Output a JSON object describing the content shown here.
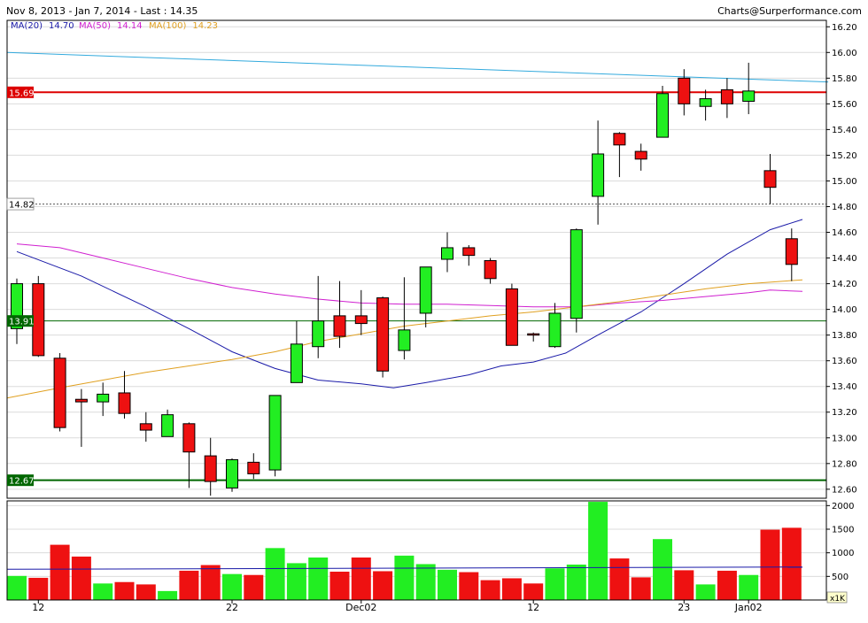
{
  "header": {
    "title": "Nov 8, 2013 - Jan 7, 2014 - Last : 14.35",
    "credit": "Charts@Surperformance.com"
  },
  "legend": [
    {
      "label": "MA(20)",
      "value": "14.70",
      "color": "#1a1aa8"
    },
    {
      "label": "MA(50)",
      "value": "14.14",
      "color": "#d020d0"
    },
    {
      "label": "MA(100)",
      "value": "14.23",
      "color": "#e0a020"
    }
  ],
  "colors": {
    "up": "#22ee22",
    "down": "#ee1111",
    "resistance": "#dd0000",
    "support": "#006600",
    "trend": "#33aadd",
    "volume_ma": "#1a1aa8"
  },
  "chart_data": {
    "type": "candlestick",
    "price_axis": {
      "range": [
        12.53,
        16.25
      ],
      "ticks": [
        "12.60",
        "12.80",
        "13.00",
        "13.20",
        "13.40",
        "13.60",
        "13.80",
        "14.00",
        "14.20",
        "14.40",
        "14.60",
        "14.80",
        "15.00",
        "15.20",
        "15.40",
        "15.60",
        "15.80",
        "16.00",
        "16.20"
      ]
    },
    "volume_axis": {
      "range": [
        0,
        2100
      ],
      "ticks": [
        "500",
        "1000",
        "1500",
        "2000"
      ],
      "unit_label": "x1K"
    },
    "x_labels": [
      {
        "index": 1,
        "label": "12"
      },
      {
        "index": 10,
        "label": "22"
      },
      {
        "index": 16,
        "label": "Dec02"
      },
      {
        "index": 24,
        "label": "12"
      },
      {
        "index": 31,
        "label": "23"
      },
      {
        "index": 34,
        "label": "Jan02"
      }
    ],
    "candles": [
      {
        "o": 13.85,
        "h": 14.24,
        "l": 13.73,
        "c": 14.2,
        "v": 510
      },
      {
        "o": 14.2,
        "h": 14.26,
        "l": 13.63,
        "c": 13.64,
        "v": 470
      },
      {
        "o": 13.62,
        "h": 13.66,
        "l": 13.05,
        "c": 13.08,
        "v": 1170
      },
      {
        "o": 13.3,
        "h": 13.38,
        "l": 12.93,
        "c": 13.28,
        "v": 920
      },
      {
        "o": 13.28,
        "h": 13.43,
        "l": 13.17,
        "c": 13.34,
        "v": 350
      },
      {
        "o": 13.35,
        "h": 13.52,
        "l": 13.15,
        "c": 13.19,
        "v": 380
      },
      {
        "o": 13.11,
        "h": 13.2,
        "l": 12.97,
        "c": 13.06,
        "v": 330
      },
      {
        "o": 13.01,
        "h": 13.22,
        "l": 13.01,
        "c": 13.18,
        "v": 190
      },
      {
        "o": 13.11,
        "h": 13.12,
        "l": 12.61,
        "c": 12.89,
        "v": 620
      },
      {
        "o": 12.86,
        "h": 13.0,
        "l": 12.55,
        "c": 12.66,
        "v": 740
      },
      {
        "o": 12.61,
        "h": 12.84,
        "l": 12.58,
        "c": 12.83,
        "v": 550
      },
      {
        "o": 12.81,
        "h": 12.88,
        "l": 12.68,
        "c": 12.72,
        "v": 530
      },
      {
        "o": 12.75,
        "h": 13.33,
        "l": 12.7,
        "c": 13.33,
        "v": 1100
      },
      {
        "o": 13.43,
        "h": 13.91,
        "l": 13.43,
        "c": 13.73,
        "v": 780
      },
      {
        "o": 13.71,
        "h": 14.26,
        "l": 13.62,
        "c": 13.91,
        "v": 900
      },
      {
        "o": 13.95,
        "h": 14.22,
        "l": 13.7,
        "c": 13.79,
        "v": 600
      },
      {
        "o": 13.95,
        "h": 14.15,
        "l": 13.8,
        "c": 13.89,
        "v": 900
      },
      {
        "o": 14.09,
        "h": 14.1,
        "l": 13.47,
        "c": 13.52,
        "v": 610
      },
      {
        "o": 13.68,
        "h": 14.25,
        "l": 13.61,
        "c": 13.84,
        "v": 940
      },
      {
        "o": 13.97,
        "h": 14.32,
        "l": 13.86,
        "c": 14.33,
        "v": 760
      },
      {
        "o": 14.39,
        "h": 14.6,
        "l": 14.29,
        "c": 14.48,
        "v": 640
      },
      {
        "o": 14.48,
        "h": 14.5,
        "l": 14.34,
        "c": 14.42,
        "v": 590
      },
      {
        "o": 14.38,
        "h": 14.4,
        "l": 14.2,
        "c": 14.24,
        "v": 420
      },
      {
        "o": 14.16,
        "h": 14.2,
        "l": 13.72,
        "c": 13.72,
        "v": 460
      },
      {
        "o": 13.81,
        "h": 13.82,
        "l": 13.75,
        "c": 13.8,
        "v": 350
      },
      {
        "o": 13.71,
        "h": 14.05,
        "l": 13.7,
        "c": 13.97,
        "v": 670
      },
      {
        "o": 13.93,
        "h": 14.63,
        "l": 13.82,
        "c": 14.62,
        "v": 750
      },
      {
        "o": 14.88,
        "h": 15.47,
        "l": 14.66,
        "c": 15.21,
        "v": 2080
      },
      {
        "o": 15.37,
        "h": 15.38,
        "l": 15.03,
        "c": 15.28,
        "v": 880
      },
      {
        "o": 15.23,
        "h": 15.29,
        "l": 15.08,
        "c": 15.17,
        "v": 480
      },
      {
        "o": 15.34,
        "h": 15.74,
        "l": 15.34,
        "c": 15.68,
        "v": 1290
      },
      {
        "o": 15.8,
        "h": 15.87,
        "l": 15.51,
        "c": 15.6,
        "v": 630
      },
      {
        "o": 15.58,
        "h": 15.71,
        "l": 15.47,
        "c": 15.64,
        "v": 330
      },
      {
        "o": 15.71,
        "h": 15.8,
        "l": 15.49,
        "c": 15.6,
        "v": 620
      },
      {
        "o": 15.62,
        "h": 15.92,
        "l": 15.52,
        "c": 15.7,
        "v": 530
      },
      {
        "o": 15.08,
        "h": 15.21,
        "l": 14.82,
        "c": 14.95,
        "v": 1490
      },
      {
        "o": 14.55,
        "h": 14.63,
        "l": 14.22,
        "c": 14.35,
        "v": 1530
      }
    ],
    "moving_averages": [
      {
        "name": "MA(20)",
        "points": [
          [
            0,
            14.45
          ],
          [
            3,
            14.26
          ],
          [
            6,
            14.02
          ],
          [
            8,
            13.85
          ],
          [
            10,
            13.67
          ],
          [
            12,
            13.54
          ],
          [
            14,
            13.45
          ],
          [
            16,
            13.42
          ],
          [
            17.5,
            13.39
          ],
          [
            19,
            13.43
          ],
          [
            21,
            13.49
          ],
          [
            22.5,
            13.56
          ],
          [
            24,
            13.59
          ],
          [
            25.5,
            13.66
          ],
          [
            27,
            13.8
          ],
          [
            29,
            13.98
          ],
          [
            31,
            14.2
          ],
          [
            33,
            14.43
          ],
          [
            35,
            14.62
          ],
          [
            36.5,
            14.7
          ]
        ]
      },
      {
        "name": "MA(50)",
        "points": [
          [
            0,
            14.51
          ],
          [
            2,
            14.48
          ],
          [
            4,
            14.4
          ],
          [
            6,
            14.32
          ],
          [
            8,
            14.24
          ],
          [
            10,
            14.17
          ],
          [
            12,
            14.12
          ],
          [
            14,
            14.08
          ],
          [
            16,
            14.05
          ],
          [
            18,
            14.04
          ],
          [
            20,
            14.04
          ],
          [
            22,
            14.03
          ],
          [
            24,
            14.02
          ],
          [
            26,
            14.02
          ],
          [
            28,
            14.05
          ],
          [
            30,
            14.07
          ],
          [
            32,
            14.1
          ],
          [
            34,
            14.13
          ],
          [
            35,
            14.15
          ],
          [
            36.5,
            14.14
          ]
        ]
      },
      {
        "name": "MA(100)",
        "points": [
          [
            -0.5,
            13.31
          ],
          [
            2,
            13.39
          ],
          [
            4,
            13.45
          ],
          [
            6,
            13.51
          ],
          [
            8,
            13.56
          ],
          [
            10,
            13.61
          ],
          [
            12,
            13.67
          ],
          [
            14,
            13.75
          ],
          [
            16,
            13.81
          ],
          [
            18,
            13.87
          ],
          [
            20,
            13.91
          ],
          [
            22,
            13.95
          ],
          [
            24,
            13.98
          ],
          [
            26,
            14.02
          ],
          [
            28,
            14.06
          ],
          [
            30,
            14.11
          ],
          [
            32,
            14.16
          ],
          [
            34,
            14.2
          ],
          [
            36.5,
            14.23
          ]
        ]
      }
    ],
    "volume_ma": [
      [
        -0.5,
        650
      ],
      [
        36.5,
        700
      ]
    ],
    "levels": [
      {
        "label": "15.69",
        "value": 15.69,
        "style": "resistance"
      },
      {
        "label": "14.82",
        "value": 14.82,
        "style": "dotted"
      },
      {
        "label": "13.91",
        "value": 13.91,
        "style": "support"
      },
      {
        "label": "12.67",
        "value": 12.67,
        "style": "support-bold"
      }
    ],
    "trendline": {
      "from": [
        -0.5,
        16.0
      ],
      "to": [
        37.7,
        15.77
      ]
    }
  }
}
